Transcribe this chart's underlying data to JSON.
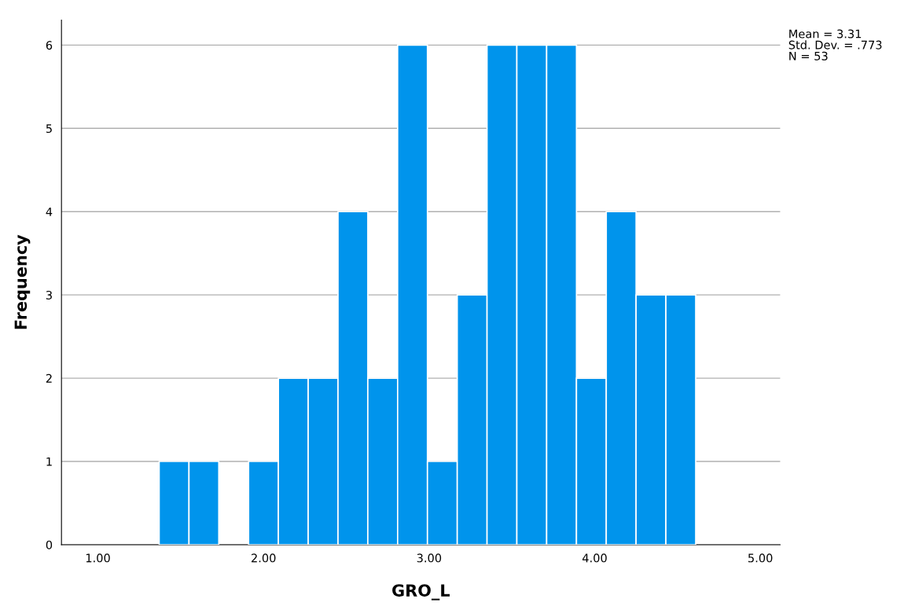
{
  "chart_data": {
    "type": "histogram",
    "xlabel": "GRO_L",
    "ylabel": "Frequency",
    "bins": [
      1.37,
      1.55,
      1.73,
      1.91,
      2.09,
      2.27,
      2.45,
      2.63,
      2.81,
      2.99,
      3.17,
      3.35,
      3.53,
      3.71,
      3.89,
      4.07,
      4.25,
      4.43,
      4.61
    ],
    "values": [
      1,
      1,
      0,
      1,
      2,
      2,
      4,
      2,
      6,
      1,
      3,
      6,
      6,
      6,
      2,
      4,
      3,
      3
    ],
    "color": "#0094ec",
    "xlim": [
      0.78,
      5.12
    ],
    "xticks": [
      {
        "value": 1,
        "label": "1.00"
      },
      {
        "value": 2,
        "label": "2.00"
      },
      {
        "value": 3,
        "label": "3.00"
      },
      {
        "value": 4,
        "label": "4.00"
      },
      {
        "value": 5,
        "label": "5.00"
      }
    ],
    "ylim": [
      0,
      6.3
    ],
    "yticks": [
      0,
      1,
      2,
      3,
      4,
      5,
      6
    ],
    "grid": "y",
    "annotations": [
      "Mean = 3.31\nStd. Dev. = .773\nN = 53"
    ]
  }
}
